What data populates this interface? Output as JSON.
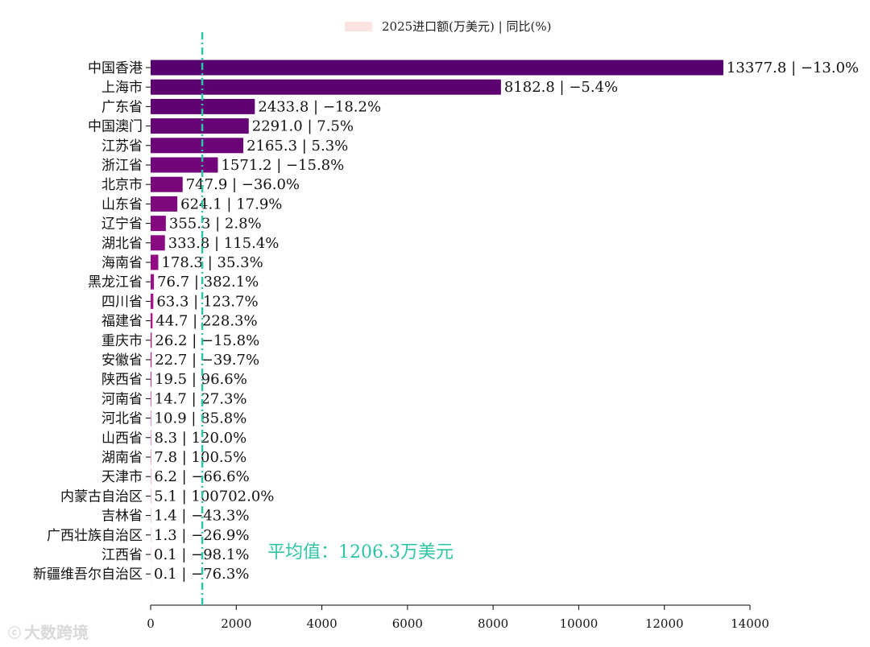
{
  "chart_data": {
    "type": "bar",
    "orientation": "horizontal",
    "legend": "2025进口额(万美元) | 同比(%)",
    "categories": [
      "中国香港",
      "上海市",
      "广东省",
      "中国澳门",
      "江苏省",
      "浙江省",
      "北京市",
      "山东省",
      "辽宁省",
      "湖北省",
      "海南省",
      "黑龙江省",
      "四川省",
      "福建省",
      "重庆市",
      "安徽省",
      "陕西省",
      "河南省",
      "河北省",
      "山西省",
      "湖南省",
      "天津市",
      "内蒙古自治区",
      "吉林省",
      "广西壮族自治区",
      "江西省",
      "新疆维吾尔自治区"
    ],
    "values": [
      13377.8,
      8182.8,
      2433.8,
      2291.0,
      2165.3,
      1571.2,
      747.9,
      624.1,
      355.3,
      333.8,
      178.3,
      76.7,
      63.3,
      44.7,
      26.2,
      22.7,
      19.5,
      14.7,
      10.9,
      8.3,
      7.8,
      6.2,
      5.1,
      1.4,
      1.3,
      0.1,
      0.1
    ],
    "bar_labels": [
      "13377.8 | −13.0%",
      "8182.8 | −5.4%",
      "2433.8 | −18.2%",
      "2291.0 | 7.5%",
      "2165.3 | 5.3%",
      "1571.2 | −15.8%",
      "747.9 | −36.0%",
      "624.1 | 17.9%",
      "355.3 | 2.8%",
      "333.8 | 115.4%",
      "178.3 | 35.3%",
      "76.7 | 382.1%",
      "63.3 | 123.7%",
      "44.7 | 228.3%",
      "26.2 | −15.8%",
      "22.7 | −39.7%",
      "19.5 | 96.6%",
      "14.7 | 27.3%",
      "10.9 | 85.8%",
      "8.3 | 120.0%",
      "7.8 | 100.5%",
      "6.2 | −66.6%",
      "5.1 | 100702.0%",
      "1.4 | −43.3%",
      "1.3 | −26.9%",
      "0.1 | −98.1%",
      "0.1 | −76.3%"
    ],
    "xlim": [
      0,
      14000
    ],
    "xticks": [
      "0",
      "2000",
      "4000",
      "6000",
      "8000",
      "10000",
      "12000",
      "14000"
    ],
    "mean_value": 1206.3,
    "mean_label": "平均值：1206.3万美元",
    "colors": {
      "bar_dark": "#55006e",
      "bar_light": "#fbe3df",
      "mean_line": "#2ec4a6"
    }
  },
  "watermark": {
    "text": "大数跨境",
    "logo": "ⓒ"
  }
}
